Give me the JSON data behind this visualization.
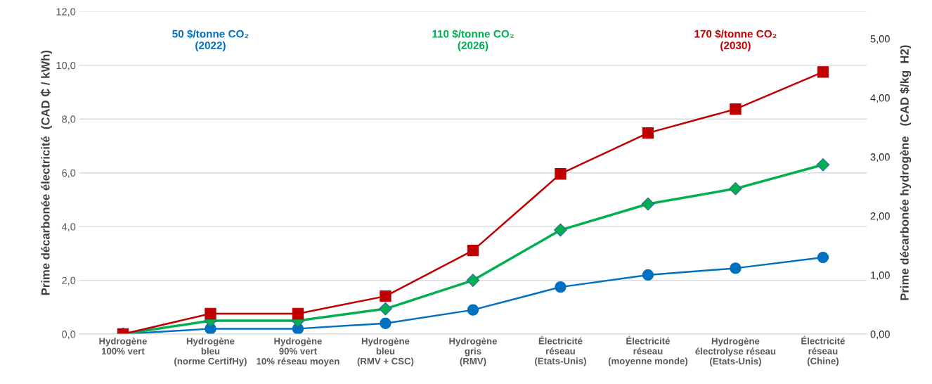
{
  "chart_data": {
    "type": "line",
    "categories": [
      "Hydrogène\n100% vert",
      "Hydrogène\nbleu\n(norme CertifHy)",
      "Hydrogène\n90% vert\n10% réseau moyen",
      "Hydrogène\nbleu\n(RMV + CSC)",
      "Hydrogène\ngris\n(RMV)",
      "Électricité\nréseau\n(Etats-Unis)",
      "Électricité\nréseau\n(moyenne monde)",
      "Hydrogène\nélectrolyse réseau\n(Etats-Unis)",
      "Électricité\nréseau\n(Chine)"
    ],
    "series": [
      {
        "name": "50 $/tonne CO₂\n(2022)",
        "color": "#0070c0",
        "marker": "circle",
        "values": [
          0,
          0.2,
          0.2,
          0.4,
          0.9,
          1.75,
          2.2,
          2.45,
          2.85
        ]
      },
      {
        "name": "110 $/tonne CO₂\n(2026)",
        "color": "#00b050",
        "marker": "diamond",
        "values": [
          0,
          0.5,
          0.5,
          0.94,
          2.0,
          3.87,
          4.84,
          5.41,
          6.3
        ]
      },
      {
        "name": "170 $/tonne CO₂\n(2030)",
        "color": "#c00000",
        "marker": "square",
        "values": [
          0,
          0.76,
          0.76,
          1.41,
          3.11,
          5.96,
          7.48,
          8.37,
          9.75
        ]
      }
    ],
    "ylabel": "Prime décarbonée électricité  (CAD ₵ / kWh)",
    "y2label": "Prime décarbonée hydrogène   (CAD $/kg  H2)",
    "ylim": [
      0,
      12
    ],
    "yticks": [
      {
        "value": 0,
        "label": "0,0"
      },
      {
        "value": 2,
        "label": "2,0"
      },
      {
        "value": 4,
        "label": "4,0"
      },
      {
        "value": 6,
        "label": "6,0"
      },
      {
        "value": 8,
        "label": "8,0"
      },
      {
        "value": 10,
        "label": "10,0"
      },
      {
        "value": 12,
        "label": "12,0"
      }
    ],
    "y2lim": [
      0,
      5.46
    ],
    "y2ticks": [
      {
        "value": 0,
        "label": "0,00"
      },
      {
        "value": 1,
        "label": "1,00"
      },
      {
        "value": 2,
        "label": "2,00"
      },
      {
        "value": 3,
        "label": "3,00"
      },
      {
        "value": 4,
        "label": "4,00"
      },
      {
        "value": 5,
        "label": "5,00"
      }
    ],
    "grid": "y",
    "legend": false,
    "line_style": "solid"
  }
}
